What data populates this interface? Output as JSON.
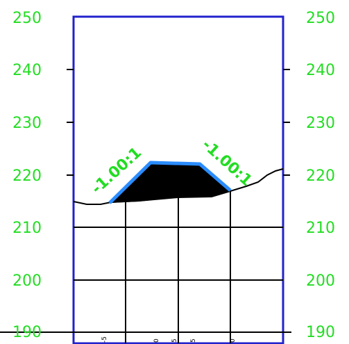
{
  "section_view": {
    "elevation_labels_left": [
      "250",
      "240",
      "230",
      "220",
      "210",
      "200",
      "190"
    ],
    "elevation_labels_right": [
      "250",
      "240",
      "230",
      "220",
      "210",
      "200",
      "190"
    ],
    "slope_labels": [
      "-1.00:1",
      "-1.00:1"
    ],
    "offset_labels": [
      "-5",
      "0",
      "5",
      "5",
      "0"
    ]
  },
  "colors": {
    "grid_frame": "#2222cc",
    "elevation_text": "#22dd22",
    "design_surface": "#2b8cff",
    "fill_area": "#000000",
    "ground_line": "#000000"
  }
}
